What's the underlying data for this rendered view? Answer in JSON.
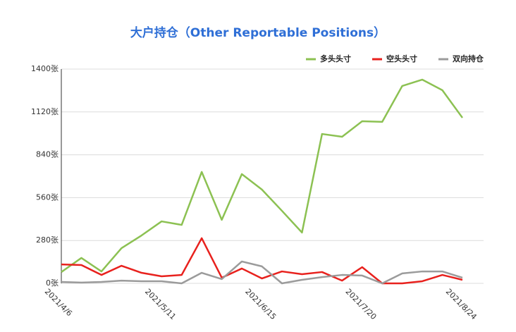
{
  "chart_data": {
    "type": "line",
    "title": "大户持仓（Other Reportable Positions）",
    "categories": [
      "2021/4/6",
      null,
      null,
      null,
      null,
      "2021/5/11",
      null,
      null,
      null,
      null,
      "2021/6/15",
      null,
      null,
      null,
      null,
      "2021/7/20",
      null,
      null,
      null,
      null,
      "2021/8/24"
    ],
    "series": [
      {
        "name": "多头头寸",
        "color": "#8cc152",
        "values": [
          74,
          166,
          78,
          230,
          313,
          405,
          382,
          728,
          415,
          714,
          613,
          474,
          332,
          976,
          958,
          1059,
          1055,
          1290,
          1331,
          1262,
          1082
        ]
      },
      {
        "name": "空头头寸",
        "color": "#e8211d",
        "values": [
          124,
          120,
          55,
          115,
          69,
          46,
          55,
          295,
          37,
          97,
          32,
          78,
          60,
          74,
          18,
          106,
          0,
          0,
          14,
          55,
          23
        ]
      },
      {
        "name": "双向持仓",
        "color": "#9b9b9b",
        "values": [
          9,
          5,
          9,
          18,
          14,
          14,
          0,
          69,
          28,
          143,
          111,
          0,
          23,
          41,
          55,
          51,
          0,
          65,
          78,
          78,
          37
        ]
      }
    ],
    "ylim": [
      0,
      1400
    ],
    "yticks": [
      {
        "value": 0,
        "label": "0张"
      },
      {
        "value": 280,
        "label": "280张"
      },
      {
        "value": 560,
        "label": "560张"
      },
      {
        "value": 840,
        "label": "840张"
      },
      {
        "value": 1120,
        "label": "1120张"
      },
      {
        "value": 1400,
        "label": "1400张"
      }
    ],
    "grid": true,
    "legend": "top-right"
  }
}
